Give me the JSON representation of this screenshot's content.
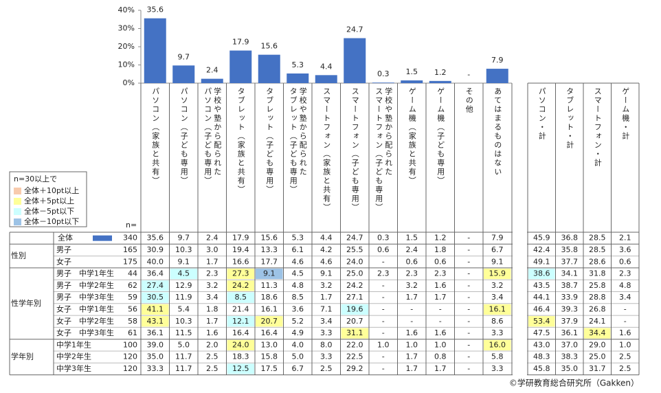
{
  "chart_data": {
    "type": "bar",
    "color": "#4472c4",
    "categories": [
      "パソコン（家族と共有）",
      "パソコン（子ども専用）",
      "学校や塾から配られた\nパソコン（子ども専用）",
      "タブレット（家族と共有）",
      "タブレット（子ども専用）",
      "学校や塾から配られた\nタブレット（子ども専用）",
      "スマートフォン（家族と共有）",
      "スマートフォン（子ども専用）",
      "学校や塾から配られた\nスマートフォン（子ども専用）",
      "ゲーム機（家族と共有）",
      "ゲーム機（子ども専用）",
      "その他",
      "あてはまるものはない"
    ],
    "values": [
      35.6,
      9.7,
      2.4,
      17.9,
      15.6,
      5.3,
      4.4,
      24.7,
      0.3,
      1.5,
      1.2,
      null,
      7.9
    ],
    "value_labels": [
      "35.6",
      "9.7",
      "2.4",
      "17.9",
      "15.6",
      "5.3",
      "4.4",
      "24.7",
      "0.3",
      "1.5",
      "1.2",
      "-",
      "7.9"
    ],
    "ylim": [
      0,
      40
    ],
    "yticks": [
      {
        "value": 0,
        "label": "0%"
      },
      {
        "value": 10,
        "label": "10%"
      },
      {
        "value": 20,
        "label": "20%"
      },
      {
        "value": 30,
        "label": "30%"
      },
      {
        "value": 40,
        "label": "40%"
      }
    ]
  },
  "legend": {
    "title": "n=30以上で",
    "items": [
      {
        "label": "全体＋10pt以上",
        "color": "#f8cbad"
      },
      {
        "label": "全体＋5pt以上",
        "color": "#ffff99"
      },
      {
        "label": "全体－5pt以下",
        "color": "#ccffff"
      },
      {
        "label": "全体－10pt以下",
        "color": "#9dc3e6"
      }
    ]
  },
  "table": {
    "extra_columns": [
      "パソコン・計",
      "タブレット・計",
      "スマートフォン・計",
      "ゲーム機・計"
    ],
    "n_label": "n=",
    "groups": [
      {
        "rows": [
          {
            "label": "全体",
            "n": 340,
            "cells": [
              "35.6",
              "9.7",
              "2.4",
              "17.9",
              "15.6",
              "5.3",
              "4.4",
              "24.7",
              "0.3",
              "1.5",
              "1.2",
              "-",
              "7.9",
              "45.9",
              "36.8",
              "28.5",
              "2.1"
            ],
            "highlight": [
              null,
              null,
              null,
              null,
              null,
              null,
              null,
              null,
              null,
              null,
              null,
              null,
              null,
              null,
              null,
              null,
              null
            ]
          }
        ]
      },
      {
        "label": "性別",
        "rows": [
          {
            "label": "男子",
            "n": 165,
            "cells": [
              "30.9",
              "10.3",
              "3.0",
              "19.4",
              "13.3",
              "6.1",
              "4.2",
              "25.5",
              "0.6",
              "2.4",
              "1.8",
              "-",
              "6.7",
              "42.4",
              "35.8",
              "28.5",
              "3.6"
            ],
            "highlight": [
              null,
              null,
              null,
              null,
              null,
              null,
              null,
              null,
              null,
              null,
              null,
              null,
              null,
              null,
              null,
              null,
              null
            ]
          },
          {
            "label": "女子",
            "n": 175,
            "cells": [
              "40.0",
              "9.1",
              "1.7",
              "16.6",
              "17.7",
              "4.6",
              "4.6",
              "24.0",
              "-",
              "0.6",
              "0.6",
              "-",
              "9.1",
              "49.1",
              "37.7",
              "28.6",
              "0.6"
            ],
            "highlight": [
              null,
              null,
              null,
              null,
              null,
              null,
              null,
              null,
              null,
              null,
              null,
              null,
              null,
              null,
              null,
              null,
              null
            ]
          }
        ]
      },
      {
        "label": "性学年別",
        "rows": [
          {
            "label": "男子　中学1年生",
            "n": 44,
            "cells": [
              "36.4",
              "4.5",
              "2.3",
              "27.3",
              "9.1",
              "4.5",
              "9.1",
              "25.0",
              "2.3",
              "2.3",
              "2.3",
              "-",
              "15.9",
              "38.6",
              "34.1",
              "31.8",
              "2.3"
            ],
            "highlight": [
              null,
              2,
              null,
              1,
              3,
              null,
              null,
              null,
              null,
              null,
              null,
              null,
              1,
              2,
              null,
              null,
              null
            ]
          },
          {
            "label": "男子　中学2年生",
            "n": 62,
            "cells": [
              "27.4",
              "12.9",
              "3.2",
              "24.2",
              "11.3",
              "4.8",
              "3.2",
              "24.2",
              "-",
              "3.2",
              "1.6",
              "-",
              "3.2",
              "43.5",
              "38.7",
              "25.8",
              "4.8"
            ],
            "highlight": [
              2,
              null,
              null,
              1,
              null,
              null,
              null,
              null,
              null,
              null,
              null,
              null,
              null,
              null,
              null,
              null,
              null
            ]
          },
          {
            "label": "男子　中学3年生",
            "n": 59,
            "cells": [
              "30.5",
              "11.9",
              "3.4",
              "8.5",
              "18.6",
              "8.5",
              "1.7",
              "27.1",
              "-",
              "1.7",
              "1.7",
              "-",
              "3.4",
              "44.1",
              "33.9",
              "28.8",
              "3.4"
            ],
            "highlight": [
              2,
              null,
              null,
              2,
              null,
              null,
              null,
              null,
              null,
              null,
              null,
              null,
              null,
              null,
              null,
              null,
              null
            ]
          },
          {
            "label": "女子　中学1年生",
            "n": 56,
            "cells": [
              "41.1",
              "5.4",
              "1.8",
              "21.4",
              "16.1",
              "3.6",
              "7.1",
              "19.6",
              "-",
              "-",
              "-",
              "-",
              "16.1",
              "46.4",
              "39.3",
              "26.8",
              "-"
            ],
            "highlight": [
              1,
              null,
              null,
              null,
              null,
              null,
              null,
              2,
              null,
              null,
              null,
              null,
              1,
              null,
              null,
              null,
              null
            ]
          },
          {
            "label": "女子　中学2年生",
            "n": 58,
            "cells": [
              "43.1",
              "10.3",
              "1.7",
              "12.1",
              "20.7",
              "5.2",
              "3.4",
              "20.7",
              "-",
              "-",
              "-",
              "-",
              "8.6",
              "53.4",
              "37.9",
              "24.1",
              "-"
            ],
            "highlight": [
              1,
              null,
              null,
              2,
              1,
              null,
              null,
              null,
              null,
              null,
              null,
              null,
              null,
              1,
              null,
              null,
              null
            ]
          },
          {
            "label": "女子　中学3年生",
            "n": 61,
            "cells": [
              "36.1",
              "11.5",
              "1.6",
              "16.4",
              "16.4",
              "4.9",
              "3.3",
              "31.1",
              "-",
              "1.6",
              "1.6",
              "-",
              "3.3",
              "47.5",
              "36.1",
              "34.4",
              "1.6"
            ],
            "highlight": [
              null,
              null,
              null,
              null,
              null,
              null,
              null,
              1,
              null,
              null,
              null,
              null,
              null,
              null,
              null,
              1,
              null
            ]
          }
        ]
      },
      {
        "label": "学年別",
        "rows": [
          {
            "label": "中学1年生",
            "n": 100,
            "cells": [
              "39.0",
              "5.0",
              "2.0",
              "24.0",
              "13.0",
              "4.0",
              "8.0",
              "22.0",
              "1.0",
              "1.0",
              "1.0",
              "-",
              "16.0",
              "43.0",
              "37.0",
              "29.0",
              "1.0"
            ],
            "highlight": [
              null,
              null,
              null,
              1,
              null,
              null,
              null,
              null,
              null,
              null,
              null,
              null,
              1,
              null,
              null,
              null,
              null
            ]
          },
          {
            "label": "中学2年生",
            "n": 120,
            "cells": [
              "35.0",
              "11.7",
              "2.5",
              "18.3",
              "15.8",
              "5.0",
              "3.3",
              "22.5",
              "-",
              "1.7",
              "0.8",
              "-",
              "5.8",
              "48.3",
              "38.3",
              "25.0",
              "2.5"
            ],
            "highlight": [
              null,
              null,
              null,
              null,
              null,
              null,
              null,
              null,
              null,
              null,
              null,
              null,
              null,
              null,
              null,
              null,
              null
            ]
          },
          {
            "label": "中学3年生",
            "n": 120,
            "cells": [
              "33.3",
              "11.7",
              "2.5",
              "12.5",
              "17.5",
              "6.7",
              "2.5",
              "29.2",
              "-",
              "1.7",
              "1.7",
              "-",
              "3.3",
              "45.8",
              "35.0",
              "31.7",
              "2.5"
            ],
            "highlight": [
              null,
              null,
              null,
              2,
              null,
              null,
              null,
              null,
              null,
              null,
              null,
              null,
              null,
              null,
              null,
              null,
              null
            ]
          }
        ]
      }
    ]
  },
  "source": "©学研教育総合研究所（Gakken）"
}
